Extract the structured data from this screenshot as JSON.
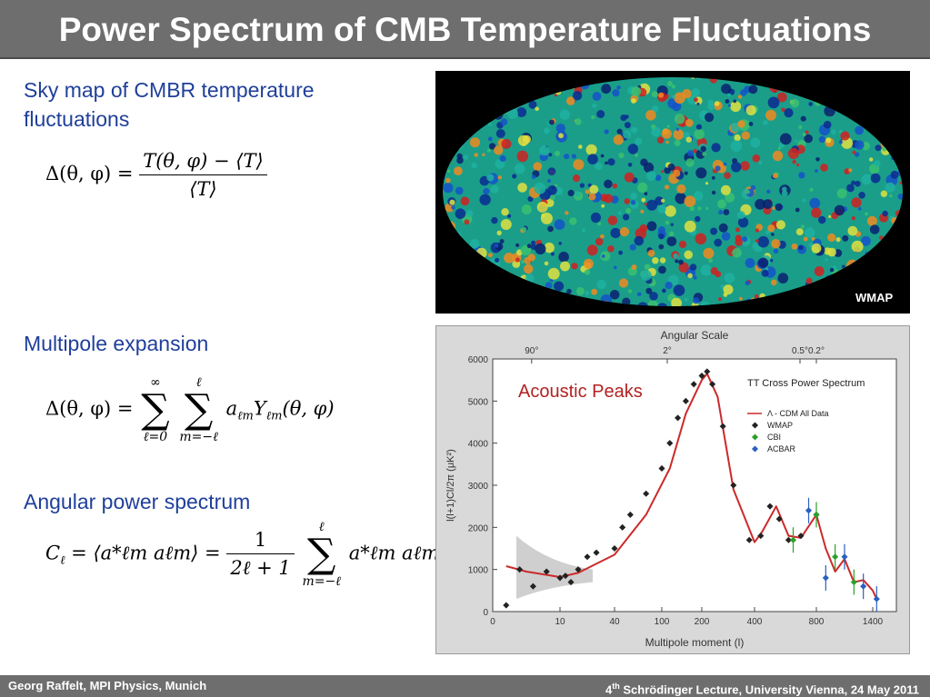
{
  "slide": {
    "title": "Power Spectrum of CMB Temperature Fluctuations",
    "sections": {
      "skymap": "Sky map of CMBR temperature fluctuations",
      "multipole": "Multipole expansion",
      "angular": "Angular power spectrum"
    },
    "skymap_label": "WMAP",
    "footer_left": "Georg Raffelt, MPI Physics, Munich",
    "footer_right_prefix": "4",
    "footer_right_sup": "th",
    "footer_right_rest": " Schrödinger Lecture, University Vienna, 24 May 2011"
  },
  "equations": {
    "delta_def": {
      "lhs": "Δ(θ, φ) =",
      "num": "T(θ, φ) − ⟨T⟩",
      "den": "⟨T⟩"
    },
    "expansion": {
      "lhs": "Δ(θ, φ) =",
      "sum1_up": "∞",
      "sum1_lo": "ℓ=0",
      "sum2_up": "ℓ",
      "sum2_lo": "m=−ℓ",
      "term": "a",
      "term_sub": "ℓm",
      "y": "Y",
      "y_sub": "ℓm",
      "args": "(θ, φ)"
    },
    "cl_def": {
      "lhs_c": "C",
      "lhs_sub": "ℓ",
      "mid": " = ⟨a*ℓm aℓm⟩ =",
      "num": "1",
      "den": "2ℓ + 1",
      "sum_up": "ℓ",
      "sum_lo": "m=−ℓ",
      "term": "a*ℓm aℓm"
    }
  },
  "chart_data": {
    "type": "scatter",
    "title": "TT Cross Power Spectrum",
    "top_axis_label": "Angular Scale",
    "top_ticks": [
      "90°",
      "2°",
      "0.5°",
      "0.2°"
    ],
    "xlabel": "Multipole moment (l)",
    "ylabel": "l(l+1)Cl/2π (μK²)",
    "x_ticks": [
      "0",
      "10",
      "40",
      "100",
      "200",
      "400",
      "800",
      "1400"
    ],
    "y_ticks": [
      "0",
      "1000",
      "2000",
      "3000",
      "4000",
      "5000",
      "6000"
    ],
    "ylim": [
      0,
      6000
    ],
    "annotation": "Acoustic Peaks",
    "legend": [
      "Λ - CDM All Data",
      "WMAP",
      "CBI",
      "ACBAR"
    ],
    "colors": {
      "model": "#cc2a2a",
      "wmap": "#222222",
      "cbi": "#2aa02a",
      "acbar": "#2a5fc0",
      "annotation": "#b22222"
    },
    "model": {
      "x": [
        2,
        5,
        10,
        20,
        40,
        80,
        120,
        160,
        200,
        220,
        260,
        320,
        400,
        450,
        540,
        620,
        700,
        800,
        900,
        1000,
        1100,
        1200,
        1300,
        1400,
        1500
      ],
      "y": [
        1080,
        950,
        820,
        920,
        1350,
        2300,
        3400,
        4700,
        5500,
        5650,
        5100,
        2900,
        1650,
        1900,
        2500,
        1800,
        1750,
        2300,
        1500,
        950,
        1250,
        700,
        750,
        500,
        300
      ]
    },
    "wmap": {
      "x": [
        2,
        4,
        6,
        8,
        10,
        13,
        16,
        20,
        25,
        30,
        40,
        50,
        60,
        80,
        100,
        120,
        140,
        160,
        180,
        200,
        220,
        240,
        280,
        320,
        380,
        440,
        500,
        560,
        620,
        700,
        800
      ],
      "y": [
        150,
        1000,
        600,
        950,
        800,
        850,
        700,
        1000,
        1300,
        1400,
        1500,
        2000,
        2300,
        2800,
        3400,
        4000,
        4600,
        5000,
        5400,
        5600,
        5700,
        5400,
        4400,
        3000,
        1700,
        1800,
        2500,
        2200,
        1700,
        1800,
        2300
      ]
    },
    "cbi": {
      "x": [
        650,
        800,
        1000,
        1200
      ],
      "y": [
        1700,
        2300,
        1300,
        700
      ]
    },
    "acbar": {
      "x": [
        750,
        900,
        1100,
        1300,
        1500
      ],
      "y": [
        2400,
        800,
        1300,
        600,
        300
      ]
    }
  }
}
